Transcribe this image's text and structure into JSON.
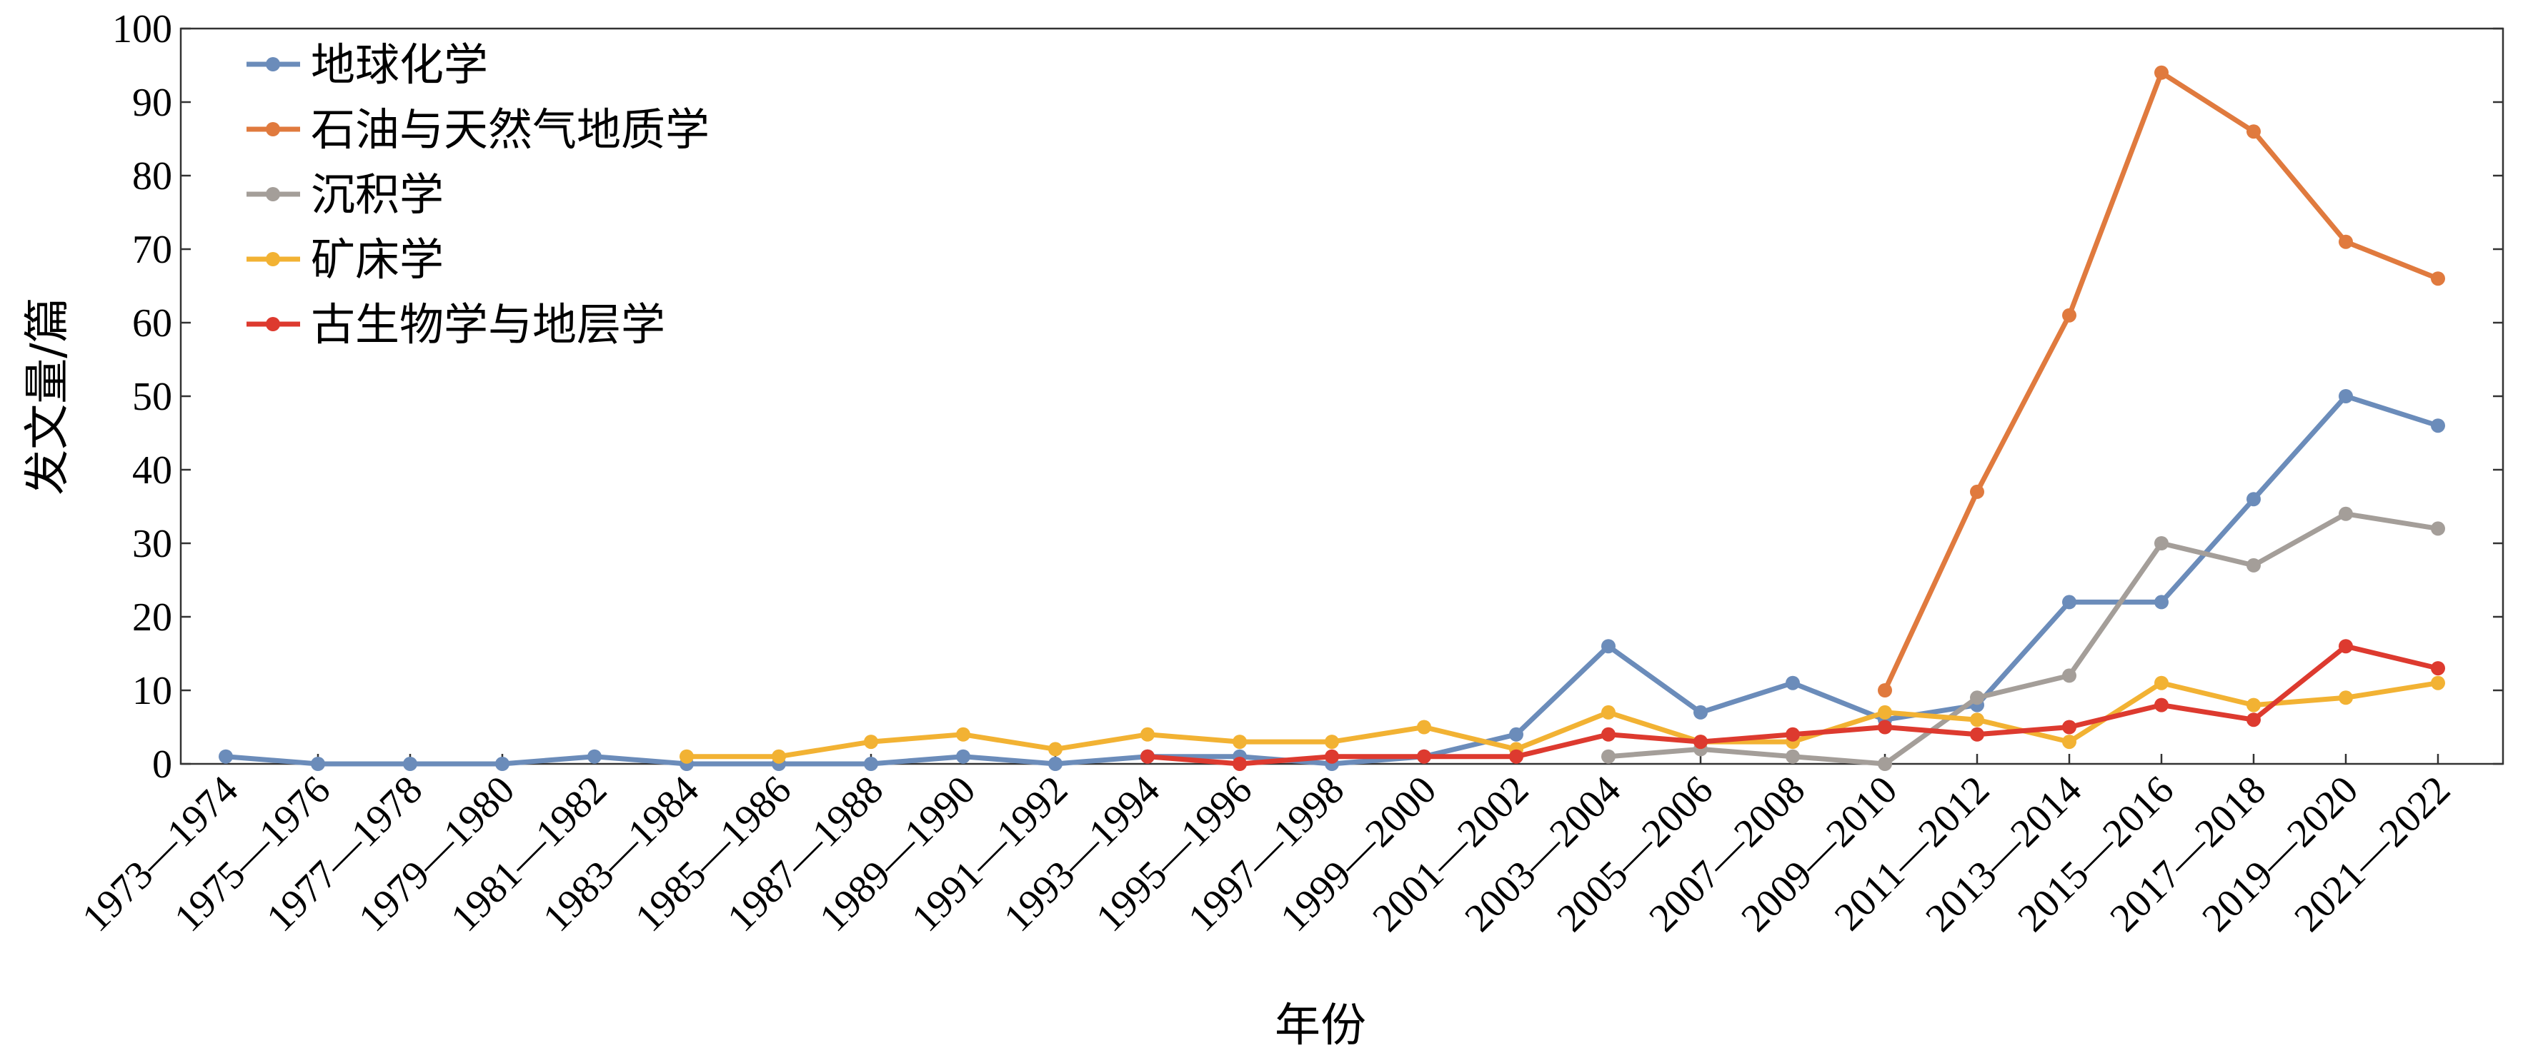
{
  "chart_data": {
    "type": "line",
    "xlabel": "年份",
    "ylabel": "发文量/篇",
    "ylim": [
      0,
      100
    ],
    "yticks": [
      0,
      10,
      20,
      30,
      40,
      50,
      60,
      70,
      80,
      90,
      100
    ],
    "grid": false,
    "legend_position": "top-left",
    "categories": [
      "1973—1974",
      "1975—1976",
      "1977—1978",
      "1979—1980",
      "1981—1982",
      "1983—1984",
      "1985—1986",
      "1987—1988",
      "1989—1990",
      "1991—1992",
      "1993—1994",
      "1995—1996",
      "1997—1998",
      "1999—2000",
      "2001—2002",
      "2003—2004",
      "2005—2006",
      "2007—2008",
      "2009—2010",
      "2011—2012",
      "2013—2014",
      "2015—2016",
      "2017—2018",
      "2019—2020",
      "2021—2022"
    ],
    "series": [
      {
        "name": "地球化学",
        "color": "#6b8cba",
        "values": [
          1,
          0,
          0,
          0,
          1,
          0,
          0,
          0,
          1,
          0,
          1,
          1,
          0,
          1,
          4,
          16,
          7,
          11,
          6,
          8,
          22,
          22,
          36,
          50,
          46
        ]
      },
      {
        "name": "石油与天然气地质学",
        "color": "#e07a3e",
        "values": [
          null,
          null,
          null,
          null,
          null,
          null,
          null,
          null,
          null,
          null,
          null,
          null,
          null,
          null,
          null,
          null,
          null,
          null,
          10,
          37,
          61,
          94,
          86,
          71,
          66
        ]
      },
      {
        "name": "沉积学",
        "color": "#a49e99",
        "values": [
          null,
          null,
          null,
          null,
          null,
          null,
          null,
          null,
          null,
          null,
          null,
          null,
          null,
          null,
          null,
          1,
          2,
          1,
          0,
          9,
          12,
          30,
          27,
          34,
          32
        ]
      },
      {
        "name": "矿床学",
        "color": "#f2b233",
        "values": [
          null,
          null,
          null,
          null,
          null,
          1,
          1,
          3,
          4,
          2,
          4,
          3,
          3,
          5,
          2,
          7,
          3,
          3,
          7,
          6,
          3,
          11,
          8,
          9,
          11
        ]
      },
      {
        "name": "古生物学与地层学",
        "color": "#dd3a2f",
        "values": [
          null,
          null,
          null,
          null,
          null,
          null,
          null,
          null,
          null,
          null,
          1,
          0,
          1,
          1,
          1,
          4,
          3,
          4,
          5,
          4,
          5,
          8,
          6,
          16,
          13
        ]
      }
    ]
  }
}
